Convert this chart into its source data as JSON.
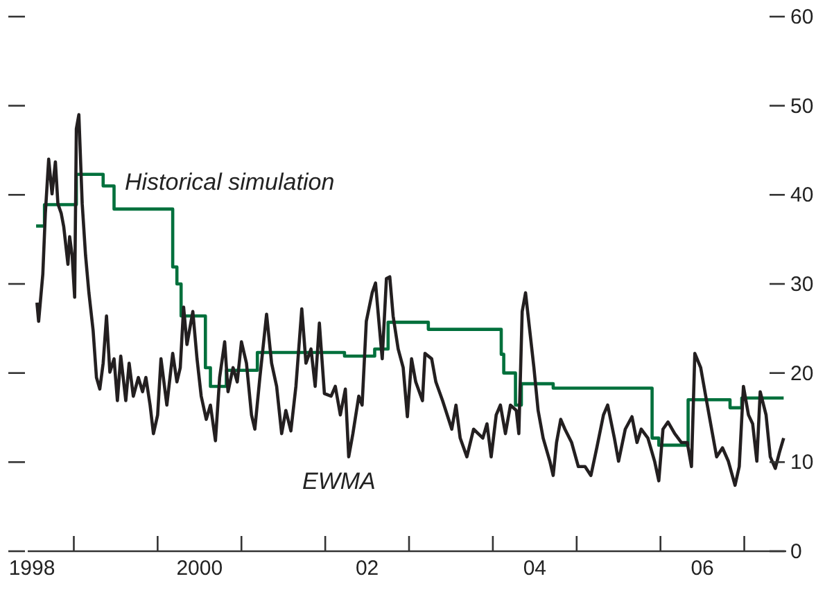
{
  "chart_data": {
    "type": "line",
    "xlim": [
      1997.95,
      2007
    ],
    "xticks": [
      1998,
      {
        "value": 1998.5,
        "label": null
      },
      {
        "value": 1999.5,
        "label": null
      },
      2000,
      {
        "value": 2000.5,
        "label": null
      },
      {
        "value": 2001.5,
        "label": null
      },
      {
        "value": 2002,
        "label": "02"
      },
      {
        "value": 2002.5,
        "label": null
      },
      {
        "value": 2003.5,
        "label": null
      },
      {
        "value": 2004,
        "label": "04"
      },
      {
        "value": 2004.5,
        "label": null
      },
      {
        "value": 2005.5,
        "label": null
      },
      {
        "value": 2006,
        "label": "06"
      },
      {
        "value": 2006.5,
        "label": null
      }
    ],
    "ylim": [
      0,
      60
    ],
    "yticks": [
      0,
      10,
      20,
      30,
      40,
      50,
      60
    ],
    "grid": false,
    "legend": false,
    "marker": "none",
    "line_style": "solid",
    "series": [
      {
        "name": "Historical simulation",
        "type": "step",
        "color": "#00703c",
        "x": [
          1998.05,
          1998.15,
          1998.53,
          1998.85,
          1998.98,
          1999.68,
          1999.73,
          1999.78,
          2000.07,
          2000.13,
          2000.32,
          2000.69,
          2001.73,
          2002.09,
          2002.25,
          2002.73,
          2003.6,
          2003.63,
          2003.77,
          2003.84,
          2004.22,
          2005.4,
          2005.48,
          2005.83,
          2006.33,
          2006.47,
          2006.97
        ],
        "values": [
          36.5,
          38.9,
          42.3,
          41,
          38.4,
          31.9,
          30,
          26.4,
          20.6,
          18.5,
          20.3,
          22.3,
          21.9,
          22.7,
          25.7,
          24.9,
          22.1,
          20,
          16.4,
          18.8,
          18.3,
          12.7,
          11.9,
          17,
          16.1,
          17.2,
          17.2
        ]
      },
      {
        "name": "EWMA",
        "type": "line",
        "color": "#231f20",
        "x": [
          1998.06,
          1998.08,
          1998.13,
          1998.16,
          1998.2,
          1998.24,
          1998.28,
          1998.31,
          1998.35,
          1998.38,
          1998.43,
          1998.45,
          1998.48,
          1998.51,
          1998.53,
          1998.56,
          1998.6,
          1998.64,
          1998.68,
          1998.73,
          1998.77,
          1998.81,
          1998.85,
          1998.89,
          1998.93,
          1998.98,
          1999.02,
          1999.06,
          1999.12,
          1999.16,
          1999.21,
          1999.27,
          1999.32,
          1999.36,
          1999.41,
          1999.45,
          1999.5,
          1999.54,
          1999.61,
          1999.68,
          1999.73,
          1999.77,
          1999.81,
          1999.85,
          1999.92,
          1999.97,
          2000.02,
          2000.08,
          2000.13,
          2000.19,
          2000.24,
          2000.3,
          2000.34,
          2000.4,
          2000.45,
          2000.5,
          2000.56,
          2000.62,
          2000.66,
          2000.72,
          2000.8,
          2000.86,
          2000.92,
          2000.98,
          2001.03,
          2001.09,
          2001.15,
          2001.22,
          2001.27,
          2001.33,
          2001.38,
          2001.43,
          2001.49,
          2001.57,
          2001.62,
          2001.68,
          2001.74,
          2001.78,
          2001.83,
          2001.9,
          2001.94,
          2001.99,
          2002.06,
          2002.1,
          2002.14,
          2002.18,
          2002.23,
          2002.27,
          2002.31,
          2002.37,
          2002.43,
          2002.48,
          2002.53,
          2002.58,
          2002.66,
          2002.69,
          2002.77,
          2002.82,
          2002.9,
          2003.01,
          2003.06,
          2003.11,
          2003.19,
          2003.27,
          2003.38,
          2003.43,
          2003.48,
          2003.54,
          2003.59,
          2003.65,
          2003.71,
          2003.78,
          2003.81,
          2003.85,
          2003.89,
          2003.94,
          2003.99,
          2004.04,
          2004.1,
          2004.18,
          2004.22,
          2004.26,
          2004.31,
          2004.36,
          2004.44,
          2004.52,
          2004.6,
          2004.67,
          2004.74,
          2004.82,
          2004.87,
          2004.95,
          2005,
          2005.08,
          2005.16,
          2005.22,
          2005.27,
          2005.35,
          2005.43,
          2005.48,
          2005.53,
          2005.59,
          2005.67,
          2005.75,
          2005.82,
          2005.87,
          2005.91,
          2005.98,
          2006.04,
          2006.12,
          2006.17,
          2006.24,
          2006.31,
          2006.39,
          2006.44,
          2006.49,
          2006.55,
          2006.6,
          2006.65,
          2006.69,
          2006.76,
          2006.81,
          2006.87,
          2006.92,
          2006.97
        ],
        "values": [
          27.9,
          25.8,
          31.1,
          37.9,
          44,
          40.1,
          43.7,
          39,
          37.9,
          36.4,
          32.2,
          35.3,
          33.2,
          28.5,
          47.4,
          49,
          39,
          33.2,
          29,
          24.8,
          19.5,
          18.2,
          21.1,
          26.4,
          20.1,
          21.6,
          16.9,
          21.9,
          16.9,
          21.1,
          17.4,
          19.5,
          17.9,
          19.5,
          16.4,
          13.2,
          15.3,
          21.6,
          16.4,
          22.2,
          19,
          20.6,
          27.4,
          23.2,
          26.9,
          21.6,
          17.4,
          14.8,
          16.4,
          12.4,
          19.5,
          23.5,
          17.9,
          20.6,
          19,
          23.5,
          21.1,
          15.3,
          13.7,
          19.5,
          26.6,
          21.1,
          18.5,
          13.2,
          15.8,
          13.5,
          18.5,
          27.2,
          21.1,
          22.7,
          18.5,
          25.6,
          17.7,
          17.4,
          18.5,
          15.3,
          18.2,
          10.6,
          13.2,
          17.4,
          16.4,
          25.8,
          29,
          30.1,
          25.8,
          21.6,
          30.6,
          30.8,
          26.4,
          22.7,
          20.6,
          15.1,
          21.6,
          19,
          16.9,
          22.2,
          21.6,
          19,
          16.9,
          13.7,
          16.4,
          12.7,
          10.6,
          13.7,
          12.7,
          14.3,
          10.6,
          15.3,
          16.4,
          13.2,
          16.4,
          15.8,
          13.2,
          26.9,
          29,
          24.8,
          20.6,
          15.8,
          12.7,
          10.1,
          8.5,
          12.2,
          14.8,
          13.7,
          12.2,
          9.5,
          9.5,
          8.5,
          11.6,
          15.3,
          16.4,
          12.7,
          10.1,
          13.7,
          15.1,
          12.2,
          13.7,
          12.7,
          10.1,
          7.9,
          13.7,
          14.5,
          13.2,
          12.2,
          12.2,
          9.5,
          22.2,
          20.6,
          17.4,
          13.2,
          10.6,
          11.6,
          10.1,
          7.4,
          9.5,
          18.5,
          15.3,
          14.3,
          10.1,
          17.9,
          15.3,
          10.6,
          9.3,
          11.1,
          12.7
        ]
      }
    ]
  }
}
